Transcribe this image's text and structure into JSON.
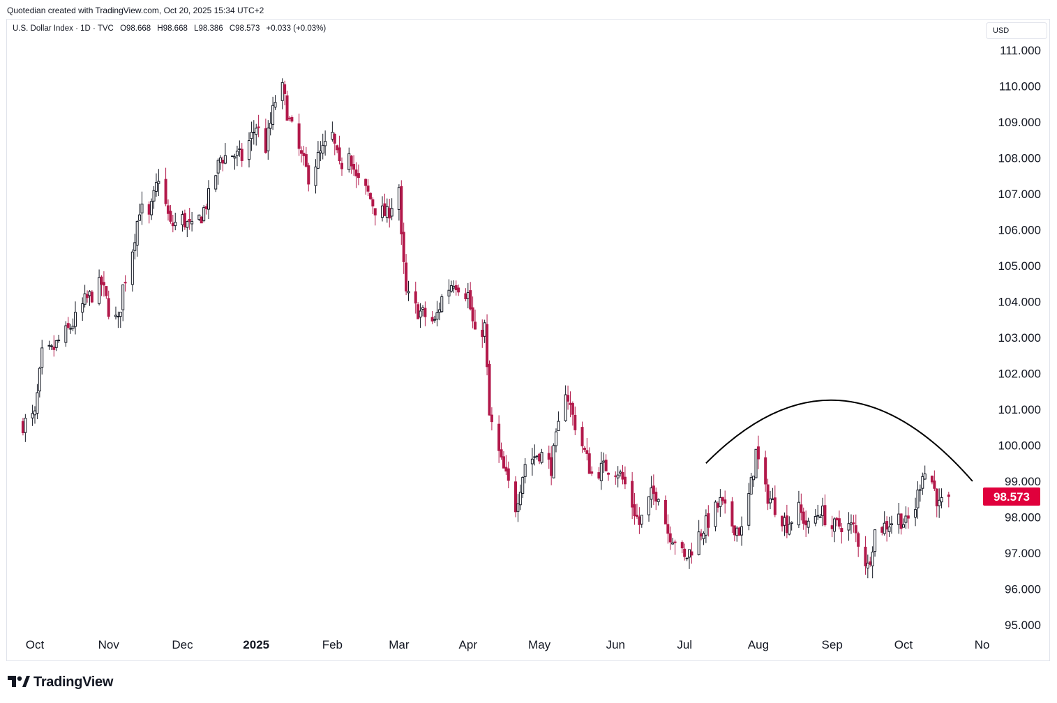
{
  "attribution": "Quotedian created with TradingView.com, Oct 20, 2025 15:34 UTC+2",
  "legend": {
    "symbol": "U.S. Dollar Index · 1D · TVC",
    "open": "O98.668",
    "high": "H98.668",
    "low": "L98.386",
    "close": "C98.573",
    "change": "+0.033 (+0.03%)"
  },
  "currency": "USD",
  "last_price_label": "98.573",
  "brand": "TradingView",
  "colors": {
    "up": "#131722",
    "down": "#b2184a",
    "price_tag": "#e0003c",
    "curve": "#000000",
    "text": "#131722"
  },
  "chart_data": {
    "type": "candlestick",
    "title": "U.S. Dollar Index",
    "timeframe": "1D",
    "source": "TVC",
    "y_axis_position": "right",
    "ylim": [
      94.9,
      111.1
    ],
    "yticks": [
      "111.000",
      "110.000",
      "109.000",
      "108.000",
      "107.000",
      "106.000",
      "105.000",
      "104.000",
      "103.000",
      "102.000",
      "101.000",
      "100.000",
      "99.000",
      "98.000",
      "97.000",
      "96.000",
      "95.000"
    ],
    "x_ticks": [
      "Oct",
      "Nov",
      "Dec",
      "2025",
      "Feb",
      "Mar",
      "Apr",
      "May",
      "Jun",
      "Jul",
      "Aug",
      "Sep",
      "Oct",
      "No"
    ],
    "x_tick_dates": [
      "2024-10-01",
      "2024-11-01",
      "2024-12-02",
      "2025-01-02",
      "2025-02-03",
      "2025-03-03",
      "2025-04-01",
      "2025-05-01",
      "2025-06-02",
      "2025-07-01",
      "2025-08-01",
      "2025-09-01",
      "2025-10-01",
      "2025-11-03"
    ],
    "last_close": 98.573,
    "annotation": {
      "type": "arc",
      "from": [
        "2025-07-10",
        99.5
      ],
      "peak": [
        "2025-09-04",
        101.25
      ],
      "to": [
        "2025-10-30",
        99.0
      ]
    },
    "close_path": [
      [
        "2024-09-26",
        100.6
      ],
      [
        "2024-10-01",
        100.8
      ],
      [
        "2024-10-04",
        102.5
      ],
      [
        "2024-10-08",
        102.6
      ],
      [
        "2024-10-11",
        102.9
      ],
      [
        "2024-10-15",
        103.2
      ],
      [
        "2024-10-18",
        103.5
      ],
      [
        "2024-10-22",
        104.0
      ],
      [
        "2024-10-25",
        104.2
      ],
      [
        "2024-10-29",
        104.5
      ],
      [
        "2024-11-01",
        103.8
      ],
      [
        "2024-11-05",
        103.4
      ],
      [
        "2024-11-07",
        104.4
      ],
      [
        "2024-11-11",
        105.5
      ],
      [
        "2024-11-14",
        106.6
      ],
      [
        "2024-11-18",
        106.3
      ],
      [
        "2024-11-22",
        107.5
      ],
      [
        "2024-11-27",
        106.1
      ],
      [
        "2024-12-02",
        106.3
      ],
      [
        "2024-12-06",
        106.0
      ],
      [
        "2024-12-10",
        106.4
      ],
      [
        "2024-12-13",
        106.9
      ],
      [
        "2024-12-18",
        108.0
      ],
      [
        "2024-12-23",
        108.1
      ],
      [
        "2024-12-27",
        108.0
      ],
      [
        "2025-01-02",
        108.9
      ],
      [
        "2025-01-06",
        108.3
      ],
      [
        "2025-01-10",
        109.6
      ],
      [
        "2025-01-13",
        109.9
      ],
      [
        "2025-01-16",
        109.0
      ],
      [
        "2025-01-21",
        108.0
      ],
      [
        "2025-01-24",
        107.5
      ],
      [
        "2025-01-28",
        108.0
      ],
      [
        "2025-02-03",
        108.6
      ],
      [
        "2025-02-06",
        107.7
      ],
      [
        "2025-02-10",
        108.3
      ],
      [
        "2025-02-13",
        107.4
      ],
      [
        "2025-02-18",
        107.0
      ],
      [
        "2025-02-21",
        106.6
      ],
      [
        "2025-02-26",
        106.4
      ],
      [
        "2025-03-03",
        107.2
      ],
      [
        "2025-03-04",
        105.7
      ],
      [
        "2025-03-06",
        104.2
      ],
      [
        "2025-03-10",
        103.8
      ],
      [
        "2025-03-14",
        103.6
      ],
      [
        "2025-03-18",
        103.4
      ],
      [
        "2025-03-21",
        104.1
      ],
      [
        "2025-03-26",
        104.6
      ],
      [
        "2025-04-01",
        104.2
      ],
      [
        "2025-04-04",
        103.0
      ],
      [
        "2025-04-08",
        103.3
      ],
      [
        "2025-04-10",
        100.8
      ],
      [
        "2025-04-15",
        99.5
      ],
      [
        "2025-04-21",
        98.3
      ],
      [
        "2025-04-25",
        99.5
      ],
      [
        "2025-05-01",
        99.8
      ],
      [
        "2025-05-06",
        99.4
      ],
      [
        "2025-05-12",
        101.6
      ],
      [
        "2025-05-15",
        100.8
      ],
      [
        "2025-05-20",
        99.8
      ],
      [
        "2025-05-23",
        99.2
      ],
      [
        "2025-05-29",
        99.4
      ],
      [
        "2025-06-03",
        99.3
      ],
      [
        "2025-06-06",
        98.9
      ],
      [
        "2025-06-12",
        97.8
      ],
      [
        "2025-06-17",
        98.6
      ],
      [
        "2025-06-20",
        98.7
      ],
      [
        "2025-06-24",
        97.6
      ],
      [
        "2025-06-27",
        97.4
      ],
      [
        "2025-07-01",
        96.8
      ],
      [
        "2025-07-07",
        97.5
      ],
      [
        "2025-07-11",
        97.9
      ],
      [
        "2025-07-16",
        98.4
      ],
      [
        "2025-07-21",
        97.8
      ],
      [
        "2025-07-25",
        97.6
      ],
      [
        "2025-07-29",
        98.9
      ],
      [
        "2025-07-31",
        99.8
      ],
      [
        "2025-08-04",
        98.7
      ],
      [
        "2025-08-08",
        98.3
      ],
      [
        "2025-08-13",
        97.8
      ],
      [
        "2025-08-18",
        98.2
      ],
      [
        "2025-08-22",
        97.7
      ],
      [
        "2025-08-27",
        98.2
      ],
      [
        "2025-09-01",
        97.7
      ],
      [
        "2025-09-05",
        97.8
      ],
      [
        "2025-09-10",
        97.7
      ],
      [
        "2025-09-16",
        96.6
      ],
      [
        "2025-09-19",
        97.6
      ],
      [
        "2025-09-24",
        97.8
      ],
      [
        "2025-09-29",
        98.0
      ],
      [
        "2025-10-02",
        97.8
      ],
      [
        "2025-10-06",
        98.3
      ],
      [
        "2025-10-09",
        99.3
      ],
      [
        "2025-10-13",
        99.0
      ],
      [
        "2025-10-16",
        98.3
      ],
      [
        "2025-10-20",
        98.573
      ]
    ]
  }
}
